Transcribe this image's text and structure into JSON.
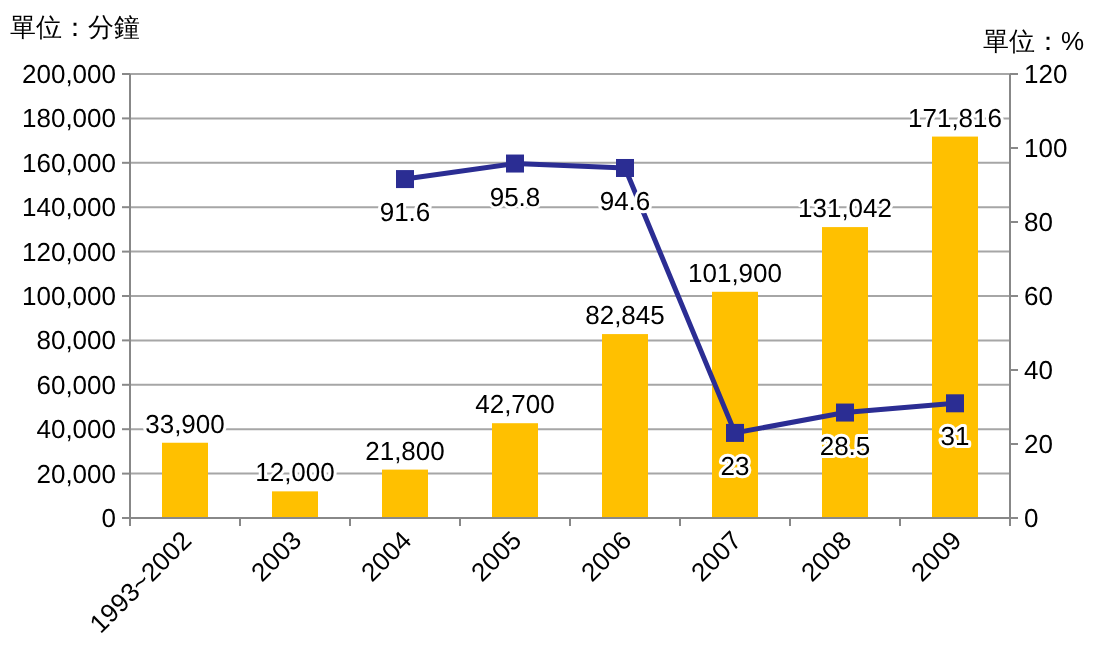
{
  "chart_data": {
    "type": "bar",
    "ylabel": "單位：分鐘",
    "y2label": "單位：%",
    "categories": [
      "1993~2002",
      "2003",
      "2004",
      "2005",
      "2006",
      "2007",
      "2008",
      "2009"
    ],
    "series": [
      {
        "color": "#ffc000",
        "values": [
          33900,
          12000,
          21800,
          42700,
          82845,
          101900,
          131042,
          171816
        ],
        "value_labels": [
          "33,900",
          "12,000",
          "21,800",
          "42,700",
          "82,845",
          "101,900",
          "131,042",
          "171,816"
        ]
      },
      {
        "type": "line",
        "axis": "y2",
        "color": "#2b2d93",
        "marker": "square",
        "values": [
          null,
          null,
          91.6,
          95.8,
          94.6,
          23,
          28.5,
          31
        ],
        "value_labels": [
          null,
          null,
          "91.6",
          "95.8",
          "94.6",
          "23",
          "28.5",
          "31"
        ]
      }
    ],
    "ylim": [
      0,
      200000
    ],
    "yticks": [
      {
        "value": 0,
        "label": "0"
      },
      {
        "value": 20000,
        "label": "20,000"
      },
      {
        "value": 40000,
        "label": "40,000"
      },
      {
        "value": 60000,
        "label": "60,000"
      },
      {
        "value": 80000,
        "label": "80,000"
      },
      {
        "value": 100000,
        "label": "100,000"
      },
      {
        "value": 120000,
        "label": "120,000"
      },
      {
        "value": 140000,
        "label": "140,000"
      },
      {
        "value": 160000,
        "label": "160,000"
      },
      {
        "value": 180000,
        "label": "180,000"
      },
      {
        "value": 200000,
        "label": "200,000"
      }
    ],
    "y2lim": [
      0,
      120
    ],
    "y2ticks": [
      0,
      20,
      40,
      60,
      80,
      100,
      120
    ],
    "grid": "y"
  }
}
